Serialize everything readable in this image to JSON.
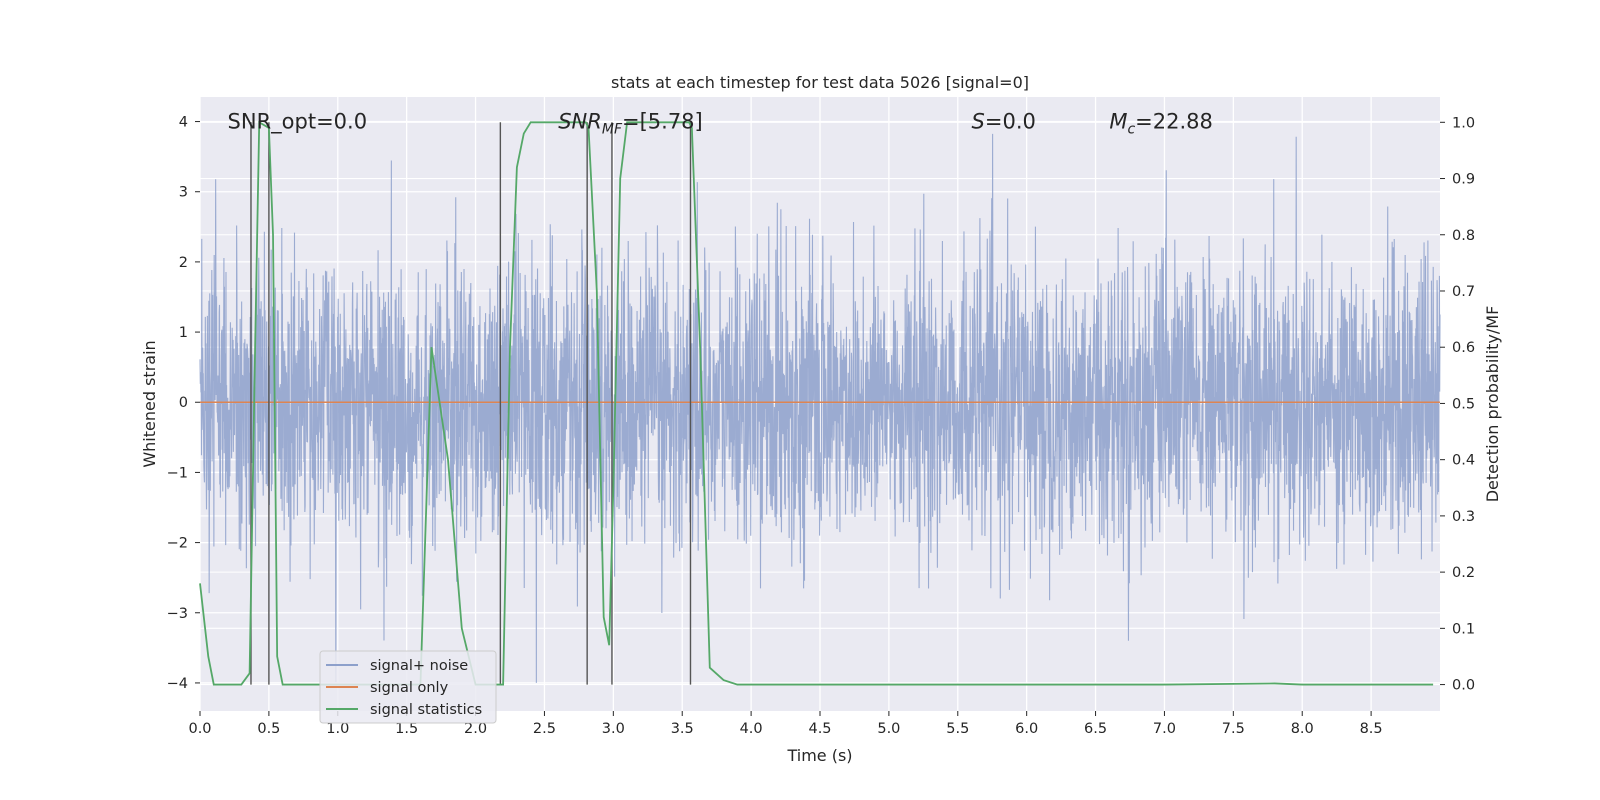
{
  "chart_data": {
    "type": "line",
    "title": "stats at each timestep for test data 5026 [signal=0]",
    "xlabel": "Time (s)",
    "ylabel_left": "Whitened strain",
    "ylabel_right": "Detection probability/MF",
    "xlim": [
      0.0,
      9.0
    ],
    "ylim_left": [
      -4.4,
      4.35
    ],
    "ylim_right": [
      -0.047,
      1.045
    ],
    "xticks": [
      "0.0",
      "0.5",
      "1.0",
      "1.5",
      "2.0",
      "2.5",
      "3.0",
      "3.5",
      "4.0",
      "4.5",
      "5.0",
      "5.5",
      "6.0",
      "6.5",
      "7.0",
      "7.5",
      "8.0",
      "8.5"
    ],
    "yticks_left": [
      "4",
      "3",
      "2",
      "1",
      "0",
      "−1",
      "−2",
      "−3",
      "−4"
    ],
    "yticks_left_values": [
      4,
      3,
      2,
      1,
      0,
      -1,
      -2,
      -3,
      -4
    ],
    "yticks_right": [
      "1.0",
      "0.9",
      "0.8",
      "0.7",
      "0.6",
      "0.5",
      "0.4",
      "0.3",
      "0.2",
      "0.1",
      "0.0"
    ],
    "yticks_right_values": [
      1.0,
      0.9,
      0.8,
      0.7,
      0.6,
      0.5,
      0.4,
      0.3,
      0.2,
      0.1,
      0.0
    ],
    "grid": true,
    "annotations": [
      {
        "text": "SNR_opt=0.0",
        "x": 0.2,
        "y": 4.0
      },
      {
        "text": "SNR_MF=[5.78]",
        "x": 2.6,
        "y": 4.0
      },
      {
        "text": "S=0.0",
        "x": 5.6,
        "y": 4.0
      },
      {
        "text": "M_c=22.88",
        "x": 6.6,
        "y": 4.0
      }
    ],
    "legend": {
      "position": "lower-left",
      "entries": [
        {
          "label": "signal+ noise",
          "color": "#8da0cb"
        },
        {
          "label": "signal only",
          "color": "#dd8452"
        },
        {
          "label": "signal statistics",
          "color": "#55a868"
        }
      ]
    },
    "series": [
      {
        "name": "signal+ noise",
        "axis": "left",
        "kind": "noise-envelope",
        "duration_s": 9.0,
        "std": 1.0,
        "peak_max": 3.9,
        "peak_min": -4.0,
        "color": "#8da0cb"
      },
      {
        "name": "signal only",
        "axis": "left",
        "x": [
          0.0,
          9.0
        ],
        "y": [
          0.0,
          0.0
        ],
        "color": "#dd8452"
      },
      {
        "name": "signal statistics",
        "axis": "right",
        "color": "#55a868",
        "x": [
          0.0,
          0.06,
          0.1,
          0.2,
          0.3,
          0.36,
          0.4,
          0.43,
          0.5,
          0.53,
          0.56,
          0.6,
          1.0,
          1.3,
          1.5,
          1.6,
          1.68,
          1.8,
          1.9,
          2.0,
          2.2,
          2.25,
          2.3,
          2.35,
          2.4,
          2.8,
          2.82,
          2.88,
          2.93,
          2.97,
          3.0,
          3.05,
          3.1,
          3.55,
          3.57,
          3.63,
          3.7,
          3.8,
          3.9,
          4.5,
          7.0,
          7.8,
          8.0,
          8.95
        ],
        "y": [
          0.18,
          0.05,
          0.0,
          0.0,
          0.0,
          0.02,
          0.6,
          1.0,
          0.99,
          0.8,
          0.05,
          0.0,
          0.0,
          0.0,
          0.0,
          0.0,
          0.6,
          0.4,
          0.1,
          0.0,
          0.0,
          0.6,
          0.92,
          0.98,
          1.0,
          1.0,
          0.99,
          0.7,
          0.12,
          0.07,
          0.35,
          0.9,
          1.0,
          1.0,
          0.99,
          0.6,
          0.03,
          0.008,
          0.0,
          0.0,
          0.0,
          0.002,
          0.0,
          0.0
        ]
      }
    ],
    "vertical_lines_x": [
      0.37,
      0.5,
      2.18,
      2.81,
      2.99,
      3.56
    ]
  }
}
